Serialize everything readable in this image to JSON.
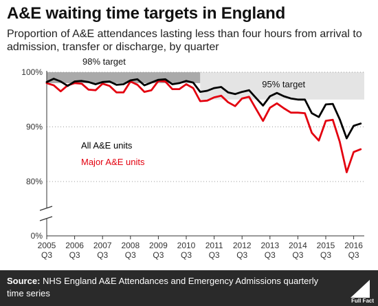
{
  "title": "A&E waiting time targets in England",
  "subtitle": "Proportion of A&E attendances lasting less than four hours from arrival to admission, transfer or discharge, by quarter",
  "footer": {
    "source_label": "Source:",
    "source_text": "NHS England A&E Attendances and Emergency Admissions quarterly time series",
    "logo_text": "Full Fact"
  },
  "colors": {
    "all_units": "#000000",
    "major_units": "#e3000f",
    "target98": "#aaaaaa",
    "target95": "#e4e4e4"
  },
  "chart_data": {
    "type": "line",
    "xlabel": "",
    "ylabel": "",
    "x_tick_labels": [
      {
        "year": "2005",
        "q": "Q3"
      },
      {
        "year": "2006",
        "q": "Q3"
      },
      {
        "year": "2007",
        "q": "Q3"
      },
      {
        "year": "2008",
        "q": "Q3"
      },
      {
        "year": "2009",
        "q": "Q3"
      },
      {
        "year": "2010",
        "q": "Q3"
      },
      {
        "year": "2011",
        "q": "Q3"
      },
      {
        "year": "2012",
        "q": "Q3"
      },
      {
        "year": "2013",
        "q": "Q3"
      },
      {
        "year": "2014",
        "q": "Q3"
      },
      {
        "year": "2015",
        "q": "Q3"
      },
      {
        "year": "2016",
        "q": "Q3"
      }
    ],
    "y_ticks": [
      {
        "value": 100,
        "label": "100%"
      },
      {
        "value": 90,
        "label": "90%"
      },
      {
        "value": 80,
        "label": "80%"
      },
      {
        "value": 0,
        "label": "0%"
      }
    ],
    "axis_break": {
      "from": 0,
      "to": 70
    },
    "ylim": [
      0,
      100
    ],
    "targets": [
      {
        "label": "98% target",
        "value": 98,
        "start": "2005 Q3",
        "end": "2011 Q1"
      },
      {
        "label": "95% target",
        "value": 95,
        "start": "2011 Q1",
        "end": "2017 Q1"
      }
    ],
    "series": [
      {
        "name": "All A&E units",
        "start": "2005 Q3",
        "values": [
          98.2,
          98.8,
          98.3,
          97.5,
          98.3,
          98.4,
          98.2,
          97.8,
          98.2,
          98.3,
          97.7,
          97.8,
          98.5,
          98.7,
          97.6,
          98.1,
          98.6,
          98.7,
          97.8,
          98.0,
          98.4,
          98.1,
          96.4,
          96.6,
          97.1,
          97.3,
          96.3,
          96.0,
          96.4,
          96.7,
          95.3,
          93.9,
          95.6,
          96.2,
          95.6,
          95.2,
          95.0,
          95.0,
          92.5,
          91.8,
          94.1,
          94.2,
          91.4,
          87.9,
          90.2,
          90.6
        ]
      },
      {
        "name": "Major A&E units",
        "start": "2005 Q3",
        "values": [
          98.0,
          97.6,
          96.5,
          97.6,
          98.0,
          97.9,
          96.8,
          96.7,
          97.9,
          97.5,
          96.3,
          96.3,
          98.3,
          97.7,
          96.4,
          96.7,
          98.4,
          98.3,
          96.9,
          96.9,
          97.8,
          97.1,
          94.7,
          94.8,
          95.4,
          95.7,
          94.5,
          93.8,
          95.2,
          95.5,
          93.3,
          91.1,
          93.5,
          94.3,
          93.4,
          92.6,
          92.6,
          92.5,
          88.9,
          87.5,
          91.1,
          91.3,
          87.3,
          81.7,
          85.4,
          85.9
        ]
      }
    ]
  }
}
